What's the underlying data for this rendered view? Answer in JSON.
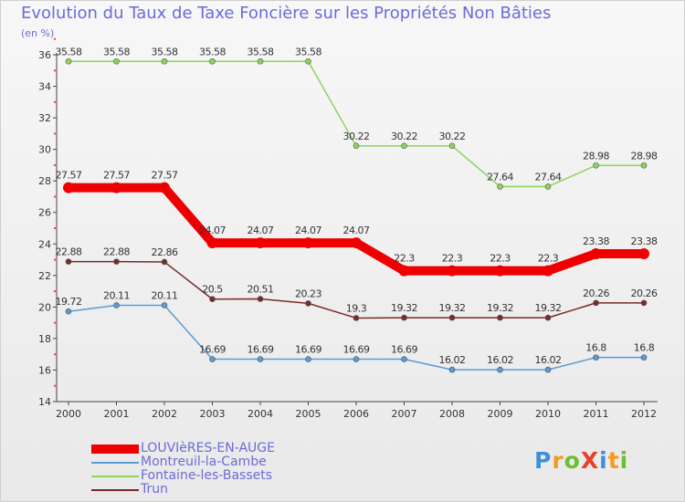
{
  "title": "Evolution du Taux de Taxe Foncière sur les Propriétés Non Bâties",
  "unit_label": "(en %)",
  "logo": {
    "text": "ProXiti",
    "colors": [
      "#3c8fd9",
      "#f39c1e",
      "#6cbf32",
      "#e8402a",
      "#3c8fd9",
      "#f39c1e",
      "#6cbf32"
    ]
  },
  "chart_data": {
    "type": "line",
    "title": "Evolution du Taux de Taxe Foncière sur les Propriétés Non Bâties",
    "ylabel": "(en %)",
    "xlabel": "",
    "ylim": [
      14,
      36
    ],
    "yticks": [
      14,
      16,
      18,
      20,
      22,
      24,
      26,
      28,
      30,
      32,
      34,
      36
    ],
    "grid": false,
    "legend_position": "bottom-left",
    "x": [
      "2000",
      "2001",
      "2002",
      "2003",
      "2004",
      "2005",
      "2006",
      "2007",
      "2008",
      "2009",
      "2010",
      "2011",
      "2012"
    ],
    "series": [
      {
        "name": "Fontaine-les-Bassets",
        "color": "#8fd35a",
        "values": [
          35.58,
          35.58,
          35.58,
          35.58,
          35.58,
          35.58,
          30.22,
          30.22,
          30.22,
          27.64,
          27.64,
          28.98,
          28.98
        ],
        "labels": [
          "35.58",
          "35.58",
          "35.58",
          "35.58",
          "35.58",
          "35.58",
          "30.22",
          "30.22",
          "30.22",
          "27.64",
          "27.64",
          "28.98",
          "28.98"
        ]
      },
      {
        "name": "Trun",
        "color": "#7a2a2a",
        "values": [
          22.88,
          22.88,
          22.86,
          20.5,
          20.51,
          20.23,
          19.3,
          19.32,
          19.32,
          19.32,
          19.32,
          20.26,
          20.26
        ],
        "labels": [
          "22.88",
          "22.88",
          "22.86",
          "20.5",
          "20.51",
          "20.23",
          "19.3",
          "19.32",
          "19.32",
          "19.32",
          "19.32",
          "20.26",
          "20.26"
        ]
      },
      {
        "name": "Montreuil-la-Cambe",
        "color": "#5b9bd5",
        "values": [
          19.72,
          20.11,
          20.11,
          16.69,
          16.69,
          16.69,
          16.69,
          16.69,
          16.02,
          16.02,
          16.02,
          16.8,
          16.8
        ],
        "labels": [
          "19.72",
          "20.11",
          "20.11",
          "16.69",
          "16.69",
          "16.69",
          "16.69",
          "16.69",
          "16.02",
          "16.02",
          "16.02",
          "16.8",
          "16.8"
        ]
      },
      {
        "name": "LOUVIèRES-EN-AUGE",
        "color": "#ee0000",
        "values": [
          27.57,
          27.57,
          27.57,
          24.07,
          24.07,
          24.07,
          24.07,
          22.3,
          22.3,
          22.3,
          22.3,
          23.38,
          23.38
        ],
        "labels": [
          "27.57",
          "27.57",
          "27.57",
          "24.07",
          "24.07",
          "24.07",
          "24.07",
          "22.3",
          "22.3",
          "22.3",
          "22.3",
          "23.38",
          "23.38"
        ]
      }
    ],
    "legend_order": [
      "LOUVIèRES-EN-AUGE",
      "Montreuil-la-Cambe",
      "Fontaine-les-Bassets",
      "Trun"
    ]
  }
}
